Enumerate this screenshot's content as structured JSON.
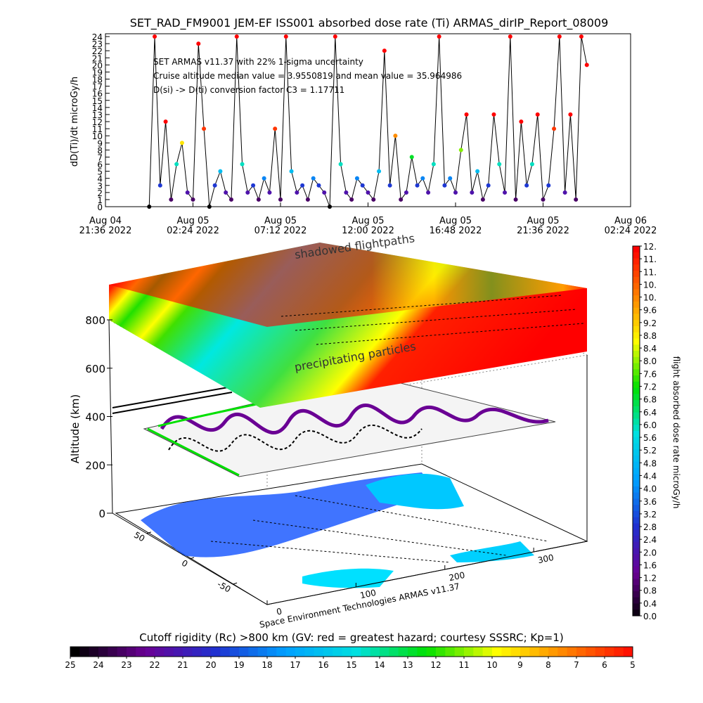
{
  "chart_data": [
    {
      "type": "line",
      "title": "SET_RAD_FM9001  JEM-EF ISS001 absorbed dose rate (Ti) ARMAS_dirIP_Report_08009",
      "y_label": "dD(Ti)/dt microGy/h",
      "annotations": [
        "SET ARMAS v11.37 with 22% 1-sigma uncertainty",
        "Cruise altitude median value = 3.9550819 and mean value = 35.964986",
        "D(si) -> D(ti) conversion factor C3 = 1.17711"
      ],
      "xlim": [
        0,
        28.8
      ],
      "xticks": [
        {
          "value": 0,
          "label": [
            "Aug 04",
            "21:36 2022"
          ]
        },
        {
          "value": 4.8,
          "label": [
            "Aug 05",
            "02:24 2022"
          ]
        },
        {
          "value": 9.6,
          "label": [
            "Aug 05",
            "07:12 2022"
          ]
        },
        {
          "value": 14.4,
          "label": [
            "Aug 05",
            "12:00 2022"
          ]
        },
        {
          "value": 19.2,
          "label": [
            "Aug 05",
            "16:48 2022"
          ]
        },
        {
          "value": 24,
          "label": [
            "Aug 05",
            "21:36 2022"
          ]
        },
        {
          "value": 28.8,
          "label": [
            "Aug 06",
            "02:24 2022"
          ]
        }
      ],
      "ylim": [
        0,
        24
      ],
      "yticks": [
        0,
        1,
        2,
        3,
        4,
        5,
        6,
        7,
        8,
        9,
        10,
        11,
        12,
        13,
        14,
        15,
        16,
        17,
        18,
        19,
        20,
        21,
        22,
        23,
        24
      ],
      "line_color": "#000000",
      "x": [
        2.4,
        2.7,
        3.0,
        3.3,
        3.6,
        3.9,
        4.2,
        4.5,
        4.8,
        5.1,
        5.4,
        5.7,
        6.0,
        6.3,
        6.6,
        6.9,
        7.2,
        7.5,
        7.8,
        8.1,
        8.4,
        8.7,
        9.0,
        9.3,
        9.6,
        9.9,
        10.2,
        10.5,
        10.8,
        11.1,
        11.4,
        11.7,
        12.0,
        12.3,
        12.6,
        12.9,
        13.2,
        13.5,
        13.8,
        14.1,
        14.4,
        14.7,
        15.0,
        15.3,
        15.6,
        15.9,
        16.2,
        16.5,
        16.8,
        17.1,
        17.4,
        17.7,
        18.0,
        18.3,
        18.6,
        18.9,
        19.2,
        19.5,
        19.8,
        20.1,
        20.4,
        20.7,
        21.0,
        21.3,
        21.6,
        21.9,
        22.2,
        22.5,
        22.8,
        23.1,
        23.4,
        23.7,
        24.0,
        24.3,
        24.6,
        24.9,
        25.2,
        25.5,
        25.8,
        26.1,
        26.4
      ],
      "values": [
        0,
        24,
        3,
        12,
        1,
        6,
        9,
        2,
        1,
        23,
        11,
        0,
        3,
        5,
        2,
        1,
        24,
        6,
        2,
        3,
        1,
        4,
        2,
        11,
        1,
        24,
        5,
        2,
        3,
        1,
        4,
        3,
        2,
        0,
        24,
        6,
        2,
        1,
        4,
        3,
        2,
        1,
        5,
        22,
        3,
        10,
        1,
        2,
        7,
        3,
        4,
        2,
        6,
        24,
        3,
        4,
        2,
        8,
        13,
        2,
        5,
        1,
        3,
        13,
        6,
        2,
        24,
        1,
        12,
        3,
        6,
        13,
        1,
        3,
        11,
        24,
        2,
        13,
        1,
        24,
        20
      ]
    },
    {
      "type": "colorbar",
      "label": "flight absorbed dose rate microGy/h",
      "ylim": [
        0,
        11.6
      ],
      "colormap": [
        "#000000",
        "#6a0094",
        "#2030d0",
        "#00a0ff",
        "#00e0e0",
        "#00e000",
        "#ffff00",
        "#ff8000",
        "#ff0000"
      ],
      "yticks": [
        {
          "value": 0,
          "label": "0.0"
        },
        0.4,
        0.8,
        1.2,
        1.6,
        {
          "value": 2,
          "label": "2.0"
        },
        2.4,
        2.8,
        3.2,
        3.6,
        {
          "value": 4,
          "label": "4.0"
        },
        4.4,
        4.8,
        5.2,
        5.6,
        {
          "value": 6,
          "label": "6.0"
        },
        6.4,
        6.8,
        7.2,
        7.6,
        {
          "value": 8,
          "label": "8.0"
        },
        8.4,
        8.8,
        9.2,
        9.6,
        {
          "value": 10,
          "label": "10."
        },
        {
          "value": 10.4,
          "label": "10."
        },
        {
          "value": 10.8,
          "label": "11."
        },
        {
          "value": 11.2,
          "label": "11."
        },
        {
          "value": 11.6,
          "label": "12."
        }
      ]
    },
    {
      "type": "colorbar",
      "label": "Cutoff rigidity (Rc) >800 km (GV: red = greatest hazard; courtesy SSSRC; Kp=1)",
      "xlim": [
        25,
        5
      ],
      "colormap": [
        "#000000",
        "#6a0094",
        "#2030d0",
        "#00a0ff",
        "#00e0e0",
        "#00e000",
        "#ffff00",
        "#ff8000",
        "#ff0000"
      ],
      "xticks": [
        25,
        24,
        23,
        22,
        21,
        20,
        19,
        18,
        17,
        16,
        15,
        14,
        13,
        12,
        11,
        10,
        9,
        8,
        7,
        6,
        5
      ]
    },
    {
      "type": "surface3d",
      "z_label": "Altitude (km)",
      "zticks": [
        0,
        200,
        400,
        600,
        800
      ],
      "lon_ticks": [
        0,
        100,
        200,
        300
      ],
      "lat_ticks": [
        50,
        0,
        -50
      ],
      "annotations": [
        "shadowed flightpaths",
        "precipitating particles"
      ],
      "credit": "Space Environment Technologies ARMAS v11.37"
    }
  ]
}
